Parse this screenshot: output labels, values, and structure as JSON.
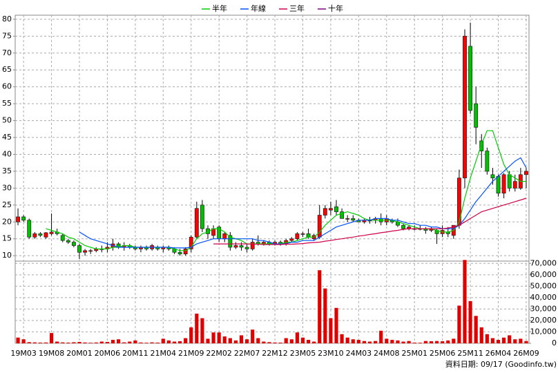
{
  "chart_data": [
    {
      "type": "candlestick",
      "legend": "top",
      "grid": true,
      "up_color": "#ff0000",
      "down_color": "#00c000",
      "ylim": [
        8.4,
        81.2
      ],
      "yticks": [
        10,
        15,
        20,
        25,
        30,
        35,
        40,
        45,
        50,
        55,
        60,
        65,
        70,
        75,
        80
      ],
      "open": [
        20,
        21.5,
        20.5,
        15.5,
        16.5,
        15.5,
        16.5,
        17,
        16,
        14.5,
        14,
        13,
        11,
        11.5,
        11.5,
        12,
        12,
        12.5,
        13.5,
        12.5,
        13,
        12.5,
        12,
        12.5,
        12,
        12.5,
        12,
        12.5,
        12,
        11,
        10.5,
        12,
        15.5,
        25,
        18,
        16,
        18.5,
        15,
        16,
        12.5,
        13,
        12.5,
        12,
        14,
        13.5,
        14,
        13.5,
        14,
        13.5,
        14.5,
        15,
        16.5,
        16.5,
        15,
        15.5,
        22,
        23.5,
        24.5,
        23,
        21,
        21,
        20.5,
        20,
        20.5,
        20.5,
        21,
        20,
        20.5,
        20,
        19,
        18,
        18,
        18,
        18,
        17.5,
        17.5,
        16.5,
        17,
        16,
        19,
        33,
        72,
        55,
        44,
        41,
        34,
        33.5,
        28.5,
        34,
        30,
        30,
        34
      ],
      "high": [
        24,
        22,
        21,
        17,
        17,
        17,
        22.5,
        18,
        16.5,
        15,
        14.5,
        13.5,
        12,
        12,
        12.5,
        13,
        14,
        15,
        14,
        14,
        13.5,
        13,
        13,
        13,
        13.5,
        13,
        13,
        13,
        12.5,
        12,
        12.5,
        16,
        26,
        26.5,
        19,
        19,
        19,
        17,
        17,
        14,
        14,
        13.5,
        15,
        16,
        14.5,
        14.5,
        14.5,
        14.5,
        15,
        15.5,
        17,
        17,
        18,
        16.5,
        25,
        25,
        26,
        26.5,
        24,
        22,
        22,
        21,
        21,
        21.5,
        21.5,
        22.5,
        22,
        21,
        21,
        19.5,
        19,
        19,
        19,
        18.5,
        18.5,
        18,
        19,
        18.5,
        19,
        35.5,
        77,
        79,
        60,
        46,
        42,
        36,
        34,
        34.5,
        35,
        34,
        36,
        36
      ],
      "low": [
        19,
        20,
        15,
        15,
        15.5,
        15,
        16,
        16,
        14,
        13.5,
        12.5,
        9,
        10,
        10.5,
        11,
        11,
        11,
        11.5,
        12,
        11.5,
        12,
        11.5,
        11,
        11.5,
        11.5,
        11.5,
        11,
        11.5,
        10.5,
        10,
        10,
        11,
        15,
        17,
        15,
        15,
        14,
        14,
        11.5,
        12,
        11.5,
        11,
        11.5,
        13,
        13,
        13,
        13,
        13,
        13,
        14,
        14.5,
        15.5,
        15,
        14.5,
        15,
        21,
        22,
        22,
        21,
        20,
        20,
        20,
        19.5,
        19.5,
        19.5,
        19,
        19,
        19.5,
        18.5,
        17.5,
        17.5,
        17.5,
        17.5,
        16.5,
        17,
        13.5,
        15.5,
        15.5,
        15,
        18,
        30,
        52,
        43,
        36,
        34,
        31,
        27.5,
        27,
        29,
        29,
        29.5,
        30
      ],
      "close": [
        21.5,
        20.5,
        15.5,
        16.5,
        16,
        16.8,
        17,
        16.5,
        14.5,
        14,
        13,
        11,
        11.5,
        11.5,
        12,
        12,
        12.5,
        13.5,
        12.5,
        13,
        12.5,
        12,
        12.5,
        12,
        13,
        12,
        12.5,
        12,
        11,
        10.5,
        12,
        15.5,
        24,
        18,
        16.5,
        18,
        15,
        16.5,
        12.5,
        13,
        12.5,
        12,
        14,
        13.5,
        14,
        13.5,
        14,
        13.5,
        14.5,
        15,
        16.5,
        16.5,
        15.5,
        16,
        22,
        24,
        24,
        23,
        21,
        21,
        20.5,
        20,
        20.5,
        20.5,
        21,
        20,
        21,
        20,
        19,
        18,
        18.5,
        18,
        18,
        17.5,
        18,
        16.5,
        17.5,
        16.5,
        19,
        33,
        75,
        53,
        48,
        41,
        35,
        33,
        28.5,
        34,
        30,
        32,
        34,
        35
      ],
      "series": [
        {
          "name": "半年",
          "color": "#00cc00",
          "values": [
            null,
            null,
            null,
            null,
            null,
            18,
            17.5,
            17,
            16.5,
            15.5,
            15,
            14,
            13,
            12.5,
            12,
            12,
            12,
            12.5,
            12.5,
            13,
            13,
            12.5,
            12.5,
            12.5,
            12.5,
            12.5,
            12.5,
            12.5,
            12,
            11.5,
            11.5,
            12.5,
            15,
            16.5,
            17,
            18,
            18,
            17,
            15.5,
            15,
            14.5,
            13.5,
            13.5,
            13.5,
            13.5,
            13.5,
            13.5,
            13.5,
            14,
            14,
            14.5,
            15,
            15.5,
            15.5,
            17,
            19,
            20.5,
            22,
            22.5,
            23,
            22.5,
            22,
            21,
            20.5,
            20.5,
            20.5,
            20.5,
            20.5,
            20,
            19.5,
            19,
            18.5,
            18,
            18,
            18,
            17.5,
            17,
            17,
            17.5,
            20,
            27,
            33,
            38,
            43,
            47,
            47,
            42,
            37,
            34,
            33,
            32,
            32
          ]
        },
        {
          "name": "年線",
          "color": "#0050ff",
          "values": [
            null,
            null,
            null,
            null,
            null,
            null,
            null,
            null,
            null,
            null,
            null,
            17,
            16,
            15,
            14.5,
            14,
            13.5,
            13,
            12.5,
            12.5,
            12.5,
            12.5,
            12.5,
            12.5,
            12.5,
            12.5,
            12.5,
            12.5,
            12.3,
            12.3,
            12.3,
            12.5,
            13.5,
            14,
            14.5,
            15,
            15,
            15,
            15,
            15,
            15,
            15,
            15,
            14.5,
            14.5,
            14,
            13.5,
            13.5,
            13.5,
            14,
            14,
            14.5,
            14.5,
            14.5,
            15.5,
            16.5,
            17.5,
            18.5,
            19,
            19.5,
            20,
            20.5,
            20.5,
            20.5,
            21,
            21,
            21,
            20.5,
            20.5,
            20,
            19.5,
            19.5,
            19,
            19,
            18.5,
            18.5,
            18,
            18,
            18,
            19,
            21,
            23.5,
            26,
            28,
            30,
            32,
            33.5,
            35,
            36.5,
            38,
            39,
            36
          ]
        },
        {
          "name": "三年",
          "color": "#d0004a",
          "values": [
            null,
            null,
            null,
            null,
            null,
            null,
            null,
            null,
            null,
            null,
            null,
            null,
            null,
            null,
            null,
            null,
            null,
            null,
            null,
            null,
            null,
            null,
            null,
            null,
            null,
            null,
            null,
            null,
            null,
            null,
            null,
            null,
            null,
            null,
            null,
            13.5,
            13.5,
            13.5,
            13.5,
            13.5,
            13.5,
            13.5,
            13.4,
            13.4,
            13.3,
            13.3,
            13.3,
            13.3,
            13.4,
            13.4,
            13.5,
            13.6,
            13.8,
            13.9,
            14,
            14.3,
            14.5,
            14.8,
            15,
            15.3,
            15.5,
            15.8,
            16,
            16.3,
            16.5,
            16.8,
            17,
            17.3,
            17.5,
            17.8,
            18,
            18,
            18,
            18,
            18,
            18,
            18,
            18.2,
            18.5,
            19,
            20,
            21,
            22,
            23,
            23.5,
            24,
            24.5,
            25,
            25.5,
            26,
            26.5,
            27
          ]
        },
        {
          "name": "十年",
          "color": "#800080",
          "values": [
            null,
            null,
            null,
            null,
            null,
            null,
            null,
            null,
            null,
            null,
            null,
            null,
            null,
            null,
            null,
            null,
            null,
            null,
            null,
            null,
            null,
            null,
            null,
            null,
            null,
            null,
            null,
            null,
            null,
            null,
            null,
            null,
            null,
            null,
            null,
            null,
            null,
            null,
            null,
            null,
            null,
            null,
            null,
            null,
            null,
            null,
            null,
            null,
            null,
            null,
            null,
            null,
            null,
            null,
            null,
            null,
            null,
            null,
            null,
            null,
            null,
            null,
            null,
            null,
            null,
            null,
            null,
            null,
            null,
            null,
            null,
            null,
            null,
            null,
            null,
            null,
            null,
            null,
            null,
            null,
            null,
            null,
            null,
            null,
            null,
            null,
            null,
            null,
            null,
            null,
            null,
            null
          ]
        }
      ]
    },
    {
      "type": "bar",
      "grid": true,
      "color": "#e00000",
      "ylim": [
        0,
        72000
      ],
      "yticks": [
        0,
        {
          "value": 10000,
          "label": "10,000"
        },
        {
          "value": 20000,
          "label": "20,000"
        },
        {
          "value": 30000,
          "label": "30,000"
        },
        {
          "value": 40000,
          "label": "40,000"
        },
        {
          "value": 50000,
          "label": "50,000"
        },
        {
          "value": 60000,
          "label": "60,000"
        },
        {
          "value": 70000,
          "label": "70,000"
        }
      ],
      "categories": [
        null,
        "19M03",
        null,
        null,
        null,
        null,
        "19M08",
        null,
        null,
        null,
        null,
        "20M01",
        null,
        null,
        null,
        null,
        "20M06",
        null,
        null,
        null,
        null,
        "20M11",
        null,
        null,
        null,
        null,
        "21M04",
        null,
        null,
        null,
        null,
        "21M09",
        null,
        null,
        null,
        null,
        "22M02",
        null,
        null,
        null,
        null,
        "22M07",
        null,
        null,
        null,
        null,
        "22M12",
        null,
        null,
        null,
        null,
        "23M05",
        null,
        null,
        null,
        null,
        "23M10",
        null,
        null,
        null,
        null,
        "24M03",
        null,
        null,
        null,
        null,
        "24M08",
        null,
        null,
        null,
        null,
        "25M01",
        null,
        null,
        null,
        null,
        "25M06",
        null,
        null,
        null,
        null,
        "25M11",
        null,
        null,
        null,
        null,
        "26M04",
        null,
        null,
        null,
        null,
        "26M09"
      ],
      "values": [
        5000,
        3500,
        1000,
        800,
        600,
        700,
        9000,
        1500,
        800,
        600,
        900,
        1200,
        700,
        500,
        700,
        1500,
        1200,
        3000,
        3500,
        800,
        1500,
        2500,
        700,
        500,
        800,
        600,
        4000,
        2500,
        1500,
        1800,
        4500,
        14000,
        26000,
        22000,
        4000,
        9500,
        9500,
        6000,
        4500,
        2500,
        7000,
        3500,
        12000,
        4500,
        1500,
        1000,
        700,
        600,
        4500,
        3500,
        9500,
        5000,
        3000,
        1500,
        64000,
        48000,
        22000,
        31000,
        8000,
        5000,
        3500,
        3000,
        2000,
        1500,
        2000,
        11000,
        4000,
        3000,
        2500,
        1500,
        2000,
        600,
        500,
        2000,
        1800,
        2000,
        1800,
        2500,
        4000,
        33000,
        73000,
        37000,
        24000,
        14000,
        8000,
        4500,
        3000,
        5000,
        7000,
        3500,
        4000,
        2000
      ],
      "note": "資料日期: 09/17 (Goodinfo.tw)"
    }
  ]
}
